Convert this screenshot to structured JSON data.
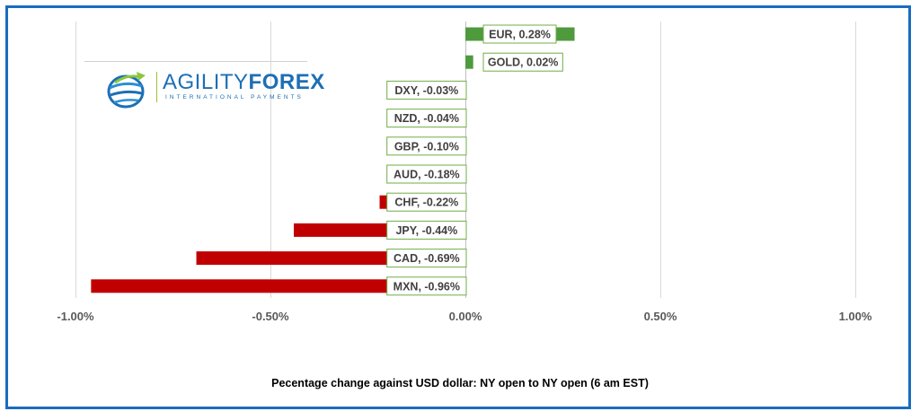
{
  "chart_data": {
    "type": "bar",
    "orientation": "horizontal",
    "categories": [
      "EUR",
      "GOLD",
      "DXY",
      "NZD",
      "GBP",
      "AUD",
      "CHF",
      "JPY",
      "CAD",
      "MXN"
    ],
    "values": [
      0.28,
      0.02,
      -0.03,
      -0.04,
      -0.1,
      -0.18,
      -0.22,
      -0.44,
      -0.69,
      -0.96
    ],
    "data_labels": [
      "EUR, 0.28%",
      "GOLD, 0.02%",
      "DXY, -0.03%",
      "NZD, -0.04%",
      "GBP, -0.10%",
      "AUD, -0.18%",
      "CHF, -0.22%",
      "JPY, -0.44%",
      "CAD, -0.69%",
      "MXN, -0.96%"
    ],
    "xlim": [
      -1.0,
      1.0
    ],
    "x_ticks": [
      -1.0,
      -0.5,
      0.0,
      0.5,
      1.0
    ],
    "x_tick_labels": [
      "-1.00%",
      "-0.50%",
      "0.00%",
      "0.50%",
      "1.00%"
    ],
    "xlabel": "Pecentage change against USD dollar: NY open to NY open  (6 am EST)",
    "grid": true,
    "legend": "none",
    "colors": {
      "positive": "#4e9a3d",
      "negative": "#c00000",
      "label_border": "#70ad47",
      "frame": "#1a6cc0"
    }
  },
  "logo": {
    "word1": "AGILITY",
    "word2": "FOREX",
    "tagline": "INTERNATIONAL PAYMENTS",
    "icon": "globe-swoosh-icon"
  }
}
